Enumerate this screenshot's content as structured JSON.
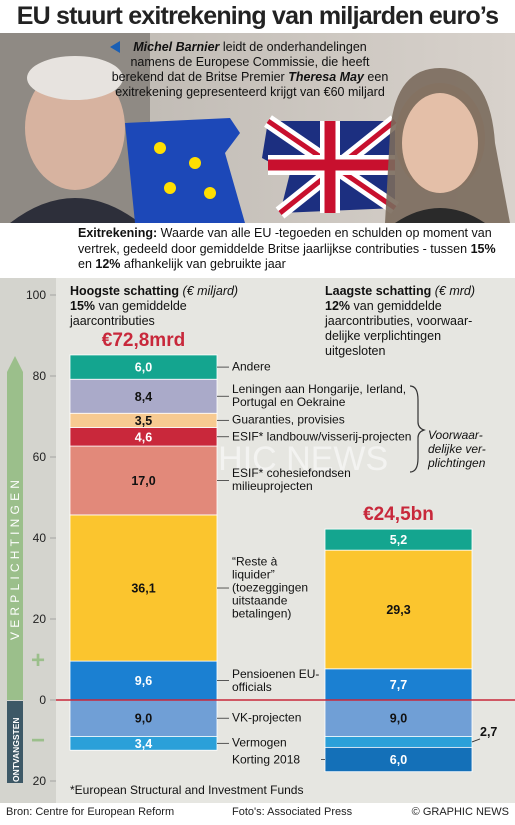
{
  "title": "EU stuurt exitrekening van miljarden euro’s",
  "intro": {
    "name1": "Michel Barnier",
    "text1": " leidt de onderhandelingen namens de Europese Commissie, die heeft berekend dat de Britse Premier ",
    "name2": "Theresa May",
    "text2": " een exitrekening gepresenteerd krijgt van €60 miljard"
  },
  "definition": [
    {
      "text": "Exitrekening:",
      "bold": true
    },
    {
      "text": " Waarde van alle EU -tegoeden en schulden op moment van vertrek, gedeeld door gemiddelde Britse jaarlijkse contributies - tussen ",
      "bold": false
    },
    {
      "text": "15%",
      "bold": true
    },
    {
      "text": " en ",
      "bold": false
    },
    {
      "text": "12%",
      "bold": true
    },
    {
      "text": " afhankelijk van gebruikte jaar",
      "bold": false
    }
  ],
  "chart_data": {
    "type": "bar",
    "stacked": true,
    "bars": [
      {
        "heading": "Hoogste schatting",
        "unit": "(€ miljard)",
        "pct": "15%",
        "subtext": " van gemiddelde jaarcontributies",
        "total_label": "€72,8mrd"
      },
      {
        "heading": "Laagste schatting",
        "unit": "(€ mrd)",
        "pct": "12%",
        "subtext": " van gemiddelde jaarcontributies, voorwaar-delijke verplichtingen uitgesloten",
        "total_label": "€24,5bn"
      }
    ],
    "series": [
      {
        "name": "Pensioenen EU-officials",
        "color": "#1b80d2",
        "text_color": "#ffffff",
        "values": [
          9.6,
          7.7
        ],
        "value_labels": [
          "9,6",
          "7,7"
        ]
      },
      {
        "name": "“Reste à liquider” (toezeggingen uitstaande betalingen)",
        "color": "#fbc52e",
        "text_color": "#111111",
        "values": [
          36.1,
          29.3
        ],
        "value_labels": [
          "36,1",
          "29,3"
        ]
      },
      {
        "name": "ESIF* cohesiefondsen milieuprojecten",
        "color": "#e2897a",
        "text_color": "#111111",
        "values": [
          17.0,
          null
        ],
        "value_labels": [
          "17,0",
          null
        ]
      },
      {
        "name": "ESIF* landbouw/visserij-projecten",
        "color": "#c9283b",
        "text_color": "#ffffff",
        "values": [
          4.6,
          null
        ],
        "value_labels": [
          "4,6",
          null
        ]
      },
      {
        "name": "Guaranties, provisies",
        "color": "#f7ca91",
        "text_color": "#111111",
        "values": [
          3.5,
          null
        ],
        "value_labels": [
          "3,5",
          null
        ]
      },
      {
        "name": "Leningen aan Hongarije, Ierland, Portugal en Oekraine",
        "color": "#aaaac9",
        "text_color": "#111111",
        "values": [
          8.4,
          null
        ],
        "value_labels": [
          "8,4",
          null
        ]
      },
      {
        "name": "Andere",
        "color": "#14a58f",
        "text_color": "#ffffff",
        "values": [
          6.0,
          5.2
        ],
        "value_labels": [
          "6,0",
          "5,2"
        ]
      },
      {
        "name": "VK-projecten",
        "color": "#709fd6",
        "text_color": "#111111",
        "values": [
          -9.0,
          -9.0
        ],
        "value_labels": [
          "9,0",
          "9,0"
        ]
      },
      {
        "name": "Vermogen",
        "color": "#2ba0d9",
        "text_color": "#ffffff",
        "values": [
          -3.4,
          -2.7
        ],
        "value_labels": [
          "3,4",
          "2,7"
        ]
      },
      {
        "name": "Korting 2018",
        "color": "#1470b8",
        "text_color": "#ffffff",
        "values": [
          null,
          -6.0
        ],
        "value_labels": [
          null,
          "6,0"
        ]
      }
    ],
    "ylim": [
      -20,
      100
    ],
    "yticks": [
      100,
      80,
      60,
      40,
      20,
      0,
      {
        "value": -20,
        "label": "20"
      }
    ],
    "axis_labels": {
      "positive": "VERPLICHTINGEN",
      "negative": "ONTVANGSTEN",
      "plus": "+",
      "minus": "−"
    },
    "annotation": "Voorwaar-delijke ver-plichtingen"
  },
  "footnote": "*European Structural and Investment Funds",
  "watermark": "GRAPHIC NEWS",
  "source": "Bron: Centre for European Reform",
  "credit": "Foto's: Associated Press",
  "copyright": "© GRAPHIC NEWS"
}
